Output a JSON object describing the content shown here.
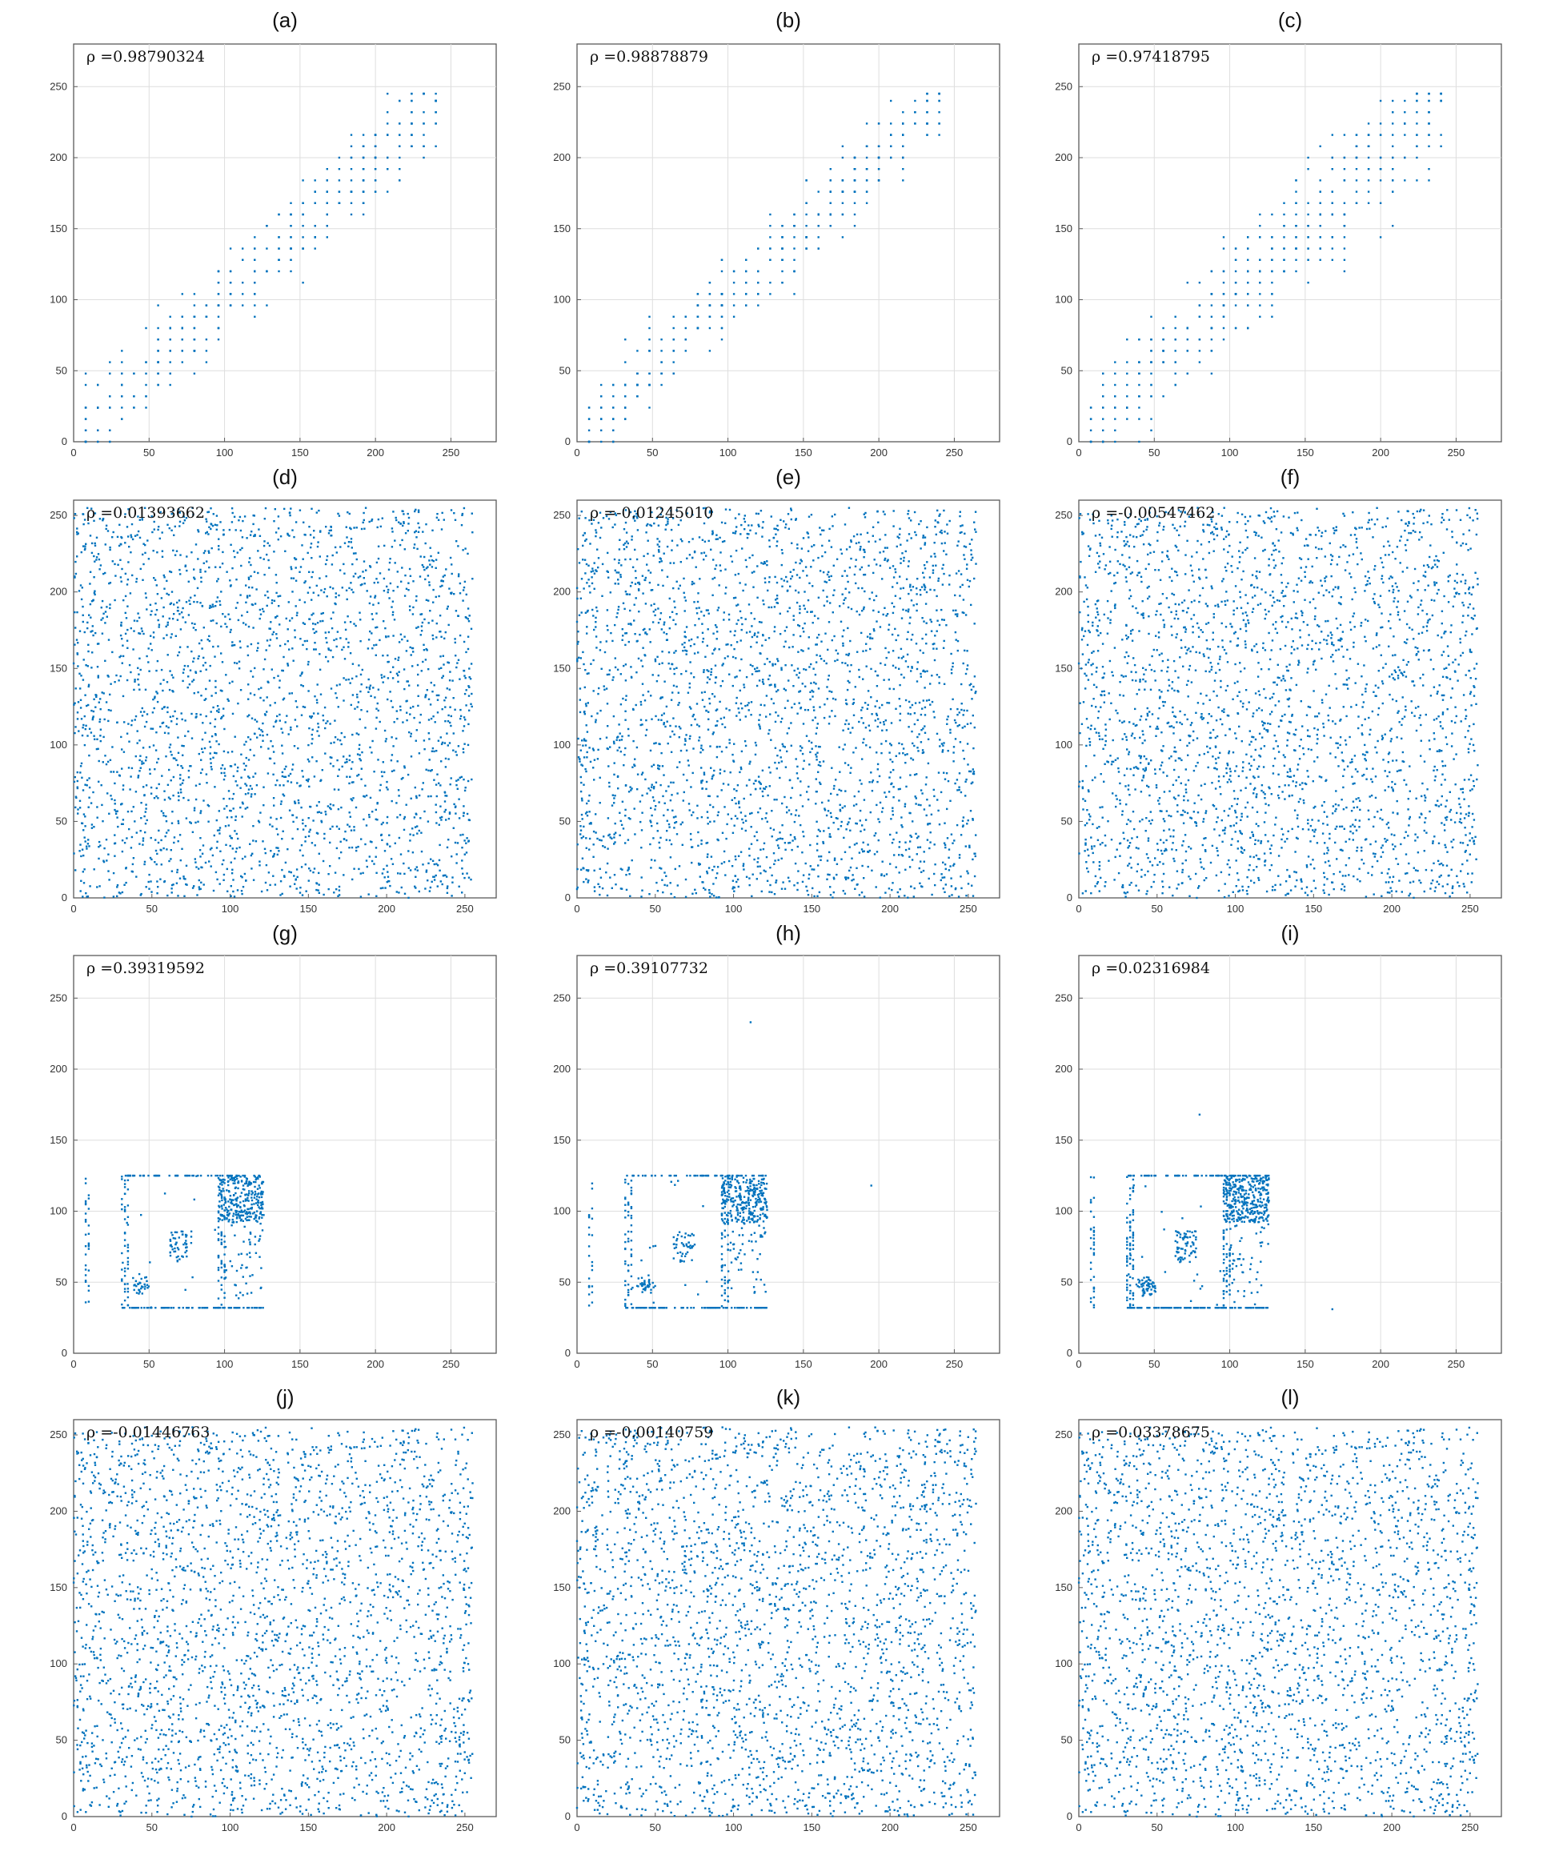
{
  "figure": {
    "marker_color": "#0072BD"
  },
  "chart_data": [
    {
      "type": "scatter",
      "title": "(a)",
      "annotation": "ρ =0.98790324",
      "pattern": "correlated",
      "spread": 14,
      "points": 420,
      "xlim": [
        0,
        280
      ],
      "ylim": [
        0,
        280
      ],
      "xticks": [
        0,
        50,
        100,
        150,
        200,
        250
      ],
      "yticks": [
        0,
        50,
        100,
        150,
        200,
        250
      ],
      "grid": true
    },
    {
      "type": "scatter",
      "title": "(b)",
      "annotation": "ρ =0.98878879",
      "pattern": "correlated",
      "spread": 13,
      "points": 420,
      "xlim": [
        0,
        280
      ],
      "ylim": [
        0,
        280
      ],
      "xticks": [
        0,
        50,
        100,
        150,
        200,
        250
      ],
      "yticks": [
        0,
        50,
        100,
        150,
        200,
        250
      ],
      "grid": true
    },
    {
      "type": "scatter",
      "title": "(c)",
      "annotation": "ρ =0.97418795",
      "pattern": "correlated",
      "spread": 20,
      "points": 430,
      "xlim": [
        0,
        280
      ],
      "ylim": [
        0,
        280
      ],
      "xticks": [
        0,
        50,
        100,
        150,
        200,
        250
      ],
      "yticks": [
        0,
        50,
        100,
        150,
        200,
        250
      ],
      "grid": true
    },
    {
      "type": "scatter",
      "title": "(d)",
      "annotation": "ρ =0.01393662",
      "pattern": "uniform",
      "points": 2600,
      "xlim": [
        0,
        270
      ],
      "ylim": [
        0,
        260
      ],
      "xticks": [
        0,
        50,
        100,
        150,
        200,
        250
      ],
      "yticks": [
        0,
        50,
        100,
        150,
        200,
        250
      ],
      "grid": false
    },
    {
      "type": "scatter",
      "title": "(e)",
      "annotation": "ρ =-0.01245010",
      "pattern": "uniform",
      "points": 2600,
      "xlim": [
        0,
        270
      ],
      "ylim": [
        0,
        260
      ],
      "xticks": [
        0,
        50,
        100,
        150,
        200,
        250
      ],
      "yticks": [
        0,
        50,
        100,
        150,
        200,
        250
      ],
      "grid": false
    },
    {
      "type": "scatter",
      "title": "(f)",
      "annotation": "ρ =-0.00547462",
      "pattern": "uniform",
      "points": 2600,
      "xlim": [
        0,
        270
      ],
      "ylim": [
        0,
        260
      ],
      "xticks": [
        0,
        50,
        100,
        150,
        200,
        250
      ],
      "yticks": [
        0,
        50,
        100,
        150,
        200,
        250
      ],
      "grid": false
    },
    {
      "type": "scatter",
      "title": "(g)",
      "annotation": "ρ =0.39319592",
      "pattern": "blocks",
      "points": 700,
      "xlim": [
        0,
        280
      ],
      "ylim": [
        0,
        280
      ],
      "xticks": [
        0,
        50,
        100,
        150,
        200,
        250
      ],
      "yticks": [
        0,
        50,
        100,
        150,
        200,
        250
      ],
      "grid": true
    },
    {
      "type": "scatter",
      "title": "(h)",
      "annotation": "ρ =0.39107732",
      "pattern": "blocks",
      "points": 700,
      "outliers": [
        [
          115,
          233
        ],
        [
          195,
          118
        ]
      ],
      "xlim": [
        0,
        280
      ],
      "ylim": [
        0,
        280
      ],
      "xticks": [
        0,
        50,
        100,
        150,
        200,
        250
      ],
      "yticks": [
        0,
        50,
        100,
        150,
        200,
        250
      ],
      "grid": true
    },
    {
      "type": "scatter",
      "title": "(i)",
      "annotation": "ρ =0.02316984",
      "pattern": "blocks",
      "points": 900,
      "outliers": [
        [
          80,
          168
        ],
        [
          168,
          31
        ]
      ],
      "xlim": [
        0,
        280
      ],
      "ylim": [
        0,
        280
      ],
      "xticks": [
        0,
        50,
        100,
        150,
        200,
        250
      ],
      "yticks": [
        0,
        50,
        100,
        150,
        200,
        250
      ],
      "grid": true
    },
    {
      "type": "scatter",
      "title": "(j)",
      "annotation": "ρ =-0.01446763",
      "pattern": "uniform",
      "points": 2600,
      "xlim": [
        0,
        270
      ],
      "ylim": [
        0,
        260
      ],
      "xticks": [
        0,
        50,
        100,
        150,
        200,
        250
      ],
      "yticks": [
        0,
        50,
        100,
        150,
        200,
        250
      ],
      "grid": false
    },
    {
      "type": "scatter",
      "title": "(k)",
      "annotation": "ρ =-0.00140759",
      "pattern": "uniform",
      "points": 2600,
      "xlim": [
        0,
        270
      ],
      "ylim": [
        0,
        260
      ],
      "xticks": [
        0,
        50,
        100,
        150,
        200,
        250
      ],
      "yticks": [
        0,
        50,
        100,
        150,
        200,
        250
      ],
      "grid": false
    },
    {
      "type": "scatter",
      "title": "(l)",
      "annotation": "ρ =0.03378675",
      "pattern": "uniform",
      "points": 2600,
      "xlim": [
        0,
        270
      ],
      "ylim": [
        0,
        260
      ],
      "xticks": [
        0,
        50,
        100,
        150,
        200,
        250
      ],
      "yticks": [
        0,
        50,
        100,
        150,
        200,
        250
      ],
      "grid": false
    }
  ]
}
